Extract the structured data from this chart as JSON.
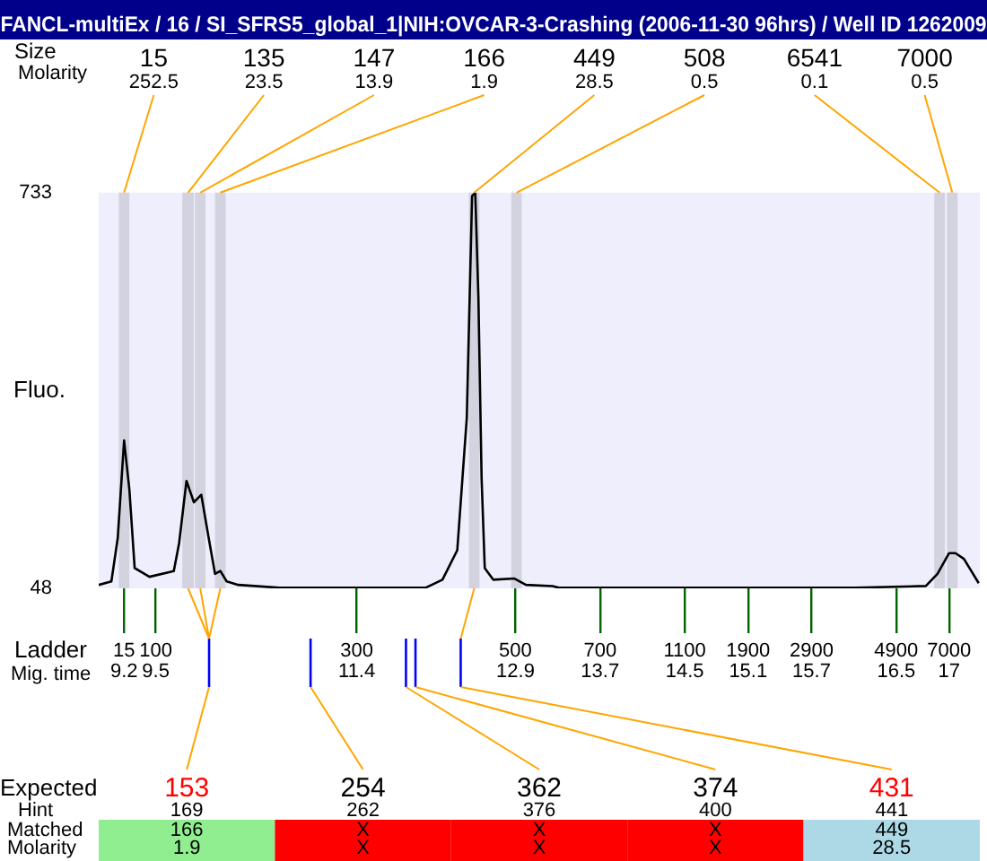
{
  "chart_data": {
    "type": "line",
    "title": "FANCL-multiEx / 16 / SI_SFRS5_global_1|NIH:OVCAR-3-Crashing (2006-11-30 96hrs) / Well ID 1262009",
    "ylabel": "Fluo.",
    "xlim": [
      8.96,
      17.29
    ],
    "ylim": [
      48,
      733
    ],
    "yticks": [
      48,
      733
    ],
    "xticks": [
      9.2,
      9.5,
      11.4,
      12.9,
      13.7,
      14.5,
      15.1,
      15.7,
      16.5,
      17
    ],
    "series": [
      {
        "color": "#000000",
        "x": [
          8.96,
          9.08,
          9.14,
          9.2,
          9.25,
          9.3,
          9.44,
          9.67,
          9.72,
          9.79,
          9.86,
          9.93,
          10.0,
          10.06,
          10.11,
          10.17,
          10.28,
          10.67,
          12.05,
          12.21,
          12.35,
          12.44,
          12.49,
          12.52,
          12.55,
          12.58,
          12.61,
          12.69,
          12.89,
          13.0,
          13.25,
          13.31,
          16.11,
          16.78,
          16.89,
          17.0,
          17.06,
          17.14,
          17.28
        ],
        "values": [
          54,
          60,
          135,
          304,
          219,
          83,
          68,
          78,
          126,
          234,
          197,
          210,
          135,
          73,
          78,
          60,
          54,
          49,
          49,
          63,
          114,
          343,
          727,
          733,
          550,
          239,
          83,
          63,
          65,
          54,
          52,
          49,
          49,
          52,
          73,
          109,
          109,
          99,
          57
        ]
      }
    ],
    "bands": [
      {
        "axis": "x",
        "from": 9.15,
        "to": 9.25,
        "label": "15\n252.5",
        "color": "#d3d3e0"
      },
      {
        "axis": "x",
        "from": 9.75,
        "to": 9.86,
        "label": "135\n23.5",
        "color": "#d3d3e0"
      },
      {
        "axis": "x",
        "from": 9.87,
        "to": 9.97,
        "label": "147\n13.9",
        "color": "#d3d3e0"
      },
      {
        "axis": "x",
        "from": 10.06,
        "to": 10.16,
        "label": "166\n1.9",
        "color": "#d3d3e0"
      },
      {
        "axis": "x",
        "from": 12.46,
        "to": 12.56,
        "label": "449\n28.5",
        "color": "#d3d3e0"
      },
      {
        "axis": "x",
        "from": 12.86,
        "to": 12.96,
        "label": "508\n0.5",
        "color": "#d3d3e0"
      },
      {
        "axis": "x",
        "from": 16.86,
        "to": 16.96,
        "label": "6541\n0.1",
        "color": "#d3d3e0"
      },
      {
        "axis": "x",
        "from": 16.98,
        "to": 17.08,
        "label": "7000\n0.5",
        "color": "#d3d3e0"
      }
    ],
    "annotations": [
      "Size",
      "Molarity",
      "Ladder",
      "Mig. time",
      "Expected",
      "Hint",
      "Matched",
      "Molarity",
      "15",
      "100",
      "300",
      "500",
      "700",
      "1100",
      "1900",
      "2900",
      "4900",
      "7000",
      "153\n169\n166\n1.9",
      "254\n262\nX\nX",
      "362\n376\nX\nX",
      "374\n400\nX\nX",
      "431\n441\n449\n28.5"
    ]
  }
}
